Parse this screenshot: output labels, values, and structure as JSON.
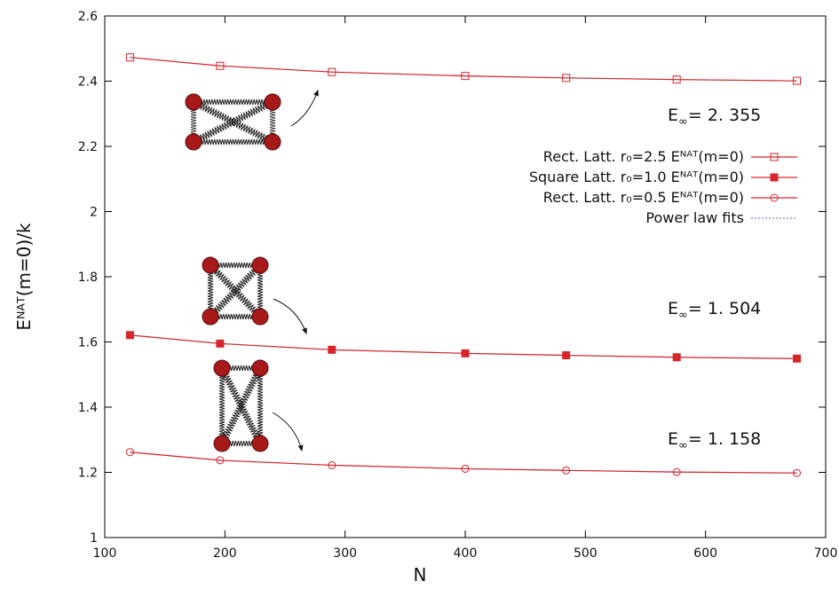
{
  "chart_data": {
    "type": "line",
    "x_label": "N",
    "y_label": "Eᴺᴬᵀ(m=0)/k",
    "x": [
      121,
      196,
      289,
      400,
      484,
      576,
      676
    ],
    "series": [
      {
        "name": "Rect. Latt. r₀=2.5 Eᴺᴬᵀ(m=0)",
        "color": "#d7262b",
        "marker": "open-square",
        "values": [
          2.473,
          2.447,
          2.428,
          2.416,
          2.41,
          2.405,
          2.401
        ]
      },
      {
        "name": "Square Latt. r₀=1.0 Eᴺᴬᵀ(m=0)",
        "color": "#d7262b",
        "marker": "filled-square",
        "values": [
          1.621,
          1.595,
          1.576,
          1.565,
          1.559,
          1.553,
          1.549
        ]
      },
      {
        "name": "Rect. Latt. r₀=0.5 Eᴺᴬᵀ(m=0)",
        "color": "#d7262b",
        "marker": "open-circle",
        "values": [
          1.262,
          1.237,
          1.222,
          1.211,
          1.206,
          1.201,
          1.198
        ]
      }
    ],
    "fits": {
      "name": "Power law fits",
      "color": "#6a8fc4",
      "curves": [
        [
          2.473,
          2.447,
          2.428,
          2.416,
          2.41,
          2.405,
          2.401
        ],
        [
          1.621,
          1.595,
          1.576,
          1.565,
          1.559,
          1.553,
          1.549
        ],
        [
          1.262,
          1.237,
          1.222,
          1.211,
          1.206,
          1.201,
          1.198
        ]
      ]
    },
    "annotations": [
      {
        "base": "E",
        "sub": "∞",
        "text": "= 2. 355"
      },
      {
        "base": "E",
        "sub": "∞",
        "text": "= 1. 504"
      },
      {
        "base": "E",
        "sub": "∞",
        "text": "= 1. 158"
      }
    ],
    "xlim": [
      100,
      700
    ],
    "xticks": [
      100,
      200,
      300,
      400,
      500,
      600,
      700
    ],
    "ylim": [
      1,
      2.6
    ],
    "yticks": [
      1,
      1.2,
      1.4,
      1.6,
      1.8,
      2,
      2.2,
      2.4,
      2.6
    ],
    "legend": "right"
  }
}
